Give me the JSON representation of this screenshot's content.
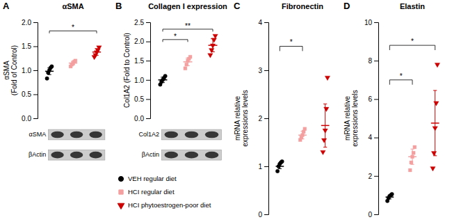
{
  "chart_data": [
    {
      "type": "strip",
      "panel_label": "A",
      "title": "αSMA",
      "ylabel": "αSMA\n(Fold of Control)",
      "ylim": [
        0.0,
        2.0
      ],
      "yticks": [
        {
          "value": 0.0,
          "label": "0.0"
        },
        0.5,
        {
          "value": 1.0,
          "label": "1.0"
        },
        1.5,
        {
          "value": 2.0,
          "label": "2.0"
        }
      ],
      "series": [
        {
          "color": "#000000",
          "marker": "circle",
          "values": [
            0.83,
            0.95,
            1.0,
            1.05,
            1.08
          ],
          "mean": 0.98,
          "error": 0.07
        },
        {
          "color": "#f4a0a0",
          "marker": "square",
          "values": [
            1.08,
            1.12,
            1.15,
            1.18,
            1.2
          ],
          "mean": 1.15,
          "error": 0.04
        },
        {
          "color": "#cc0000",
          "marker": "triangle-down",
          "values": [
            1.28,
            1.32,
            1.38,
            1.42,
            1.48
          ],
          "mean": 1.38,
          "error": 0.07
        }
      ],
      "annotations": [
        {
          "text": "*",
          "between": [
            0,
            2
          ],
          "y": 1.82
        }
      ],
      "blot_labels": [
        "αSMA",
        "βActin"
      ]
    },
    {
      "type": "strip",
      "panel_label": "B",
      "title": "Collagen I expression",
      "ylabel": "Col1A2 (Fold to Control)",
      "ylim": [
        0.0,
        2.5
      ],
      "yticks": [
        {
          "value": 0.0,
          "label": "0.0"
        },
        0.5,
        {
          "value": 1.0,
          "label": "1.0"
        },
        1.5,
        {
          "value": 2.0,
          "label": "2.0"
        },
        2.5
      ],
      "series": [
        {
          "name": "VEH regular diet",
          "color": "#000000",
          "marker": "circle",
          "values": [
            0.88,
            0.95,
            1.0,
            1.05,
            1.1
          ],
          "mean": 1.0,
          "error": 0.07
        },
        {
          "name": "HCI regular diet",
          "color": "#f4a0a0",
          "marker": "square",
          "values": [
            1.3,
            1.4,
            1.5,
            1.55,
            1.6
          ],
          "mean": 1.47,
          "error": 0.1
        },
        {
          "name": "HCI phytoestrogen-poor diet",
          "color": "#cc0000",
          "marker": "triangle-down",
          "values": [
            1.65,
            1.78,
            1.9,
            2.05,
            2.15
          ],
          "mean": 1.9,
          "error": 0.17
        }
      ],
      "annotations": [
        {
          "text": "*",
          "between": [
            0,
            1
          ],
          "y": 2.05
        },
        {
          "text": "**",
          "between": [
            0,
            2
          ],
          "y": 2.32
        }
      ],
      "blot_labels": [
        "Col1A2",
        "βActin"
      ],
      "legend": "bottom"
    },
    {
      "type": "strip",
      "panel_label": "C",
      "title": "Fibronectin",
      "ylabel": "mRNA relative\nexpressions levels",
      "ylim": [
        0.0,
        4.0
      ],
      "yticks": [
        0,
        1,
        2,
        3,
        4
      ],
      "series": [
        {
          "color": "#000000",
          "marker": "circle",
          "values": [
            0.9,
            1.0,
            1.05,
            1.08,
            1.1
          ],
          "mean": 1.0,
          "error": 0.05
        },
        {
          "color": "#f4a0a0",
          "marker": "square",
          "values": [
            1.55,
            1.6,
            1.65,
            1.72,
            1.78
          ],
          "mean": 1.65,
          "error": 0.08
        },
        {
          "color": "#cc0000",
          "marker": "triangle-down",
          "values": [
            1.3,
            1.55,
            1.75,
            2.2,
            2.85
          ],
          "mean": 1.85,
          "error": 0.45
        }
      ],
      "annotations": [
        {
          "text": "*",
          "between": [
            0,
            1
          ],
          "y": 3.5
        }
      ]
    },
    {
      "type": "strip",
      "panel_label": "D",
      "title": "Elastin",
      "ylabel": "mRNA relative\nexpressions levels",
      "ylim": [
        0,
        10
      ],
      "yticks": [
        0,
        2,
        4,
        6,
        8,
        10
      ],
      "series": [
        {
          "color": "#000000",
          "marker": "circle",
          "values": [
            0.7,
            0.85,
            0.95,
            1.0,
            1.05
          ],
          "mean": 0.9,
          "error": 0.1
        },
        {
          "color": "#f4a0a0",
          "marker": "square",
          "values": [
            2.3,
            2.7,
            3.0,
            3.2,
            3.5
          ],
          "mean": 3.0,
          "error": 0.4
        },
        {
          "color": "#cc0000",
          "marker": "triangle-down",
          "values": [
            2.4,
            3.2,
            4.5,
            5.8,
            7.8
          ],
          "mean": 4.75,
          "error": 1.7
        }
      ],
      "annotations": [
        {
          "text": "*",
          "between": [
            0,
            1
          ],
          "y": 7.0
        },
        {
          "text": "*",
          "between": [
            0,
            2
          ],
          "y": 8.8
        }
      ]
    }
  ]
}
